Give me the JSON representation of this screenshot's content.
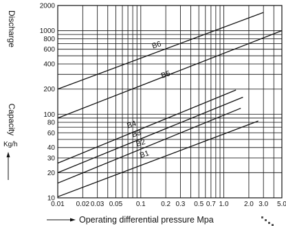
{
  "chart_data": {
    "type": "line",
    "y_label_main": "Discharge",
    "y_label_secondary": "Capacity",
    "y_unit": "Kg/h",
    "x_label": "Operating differential pressure Mpa",
    "x_scale": "log",
    "y_scale": "log",
    "xlim": [
      0.01,
      5.0
    ],
    "ylim": [
      10,
      2000
    ],
    "grid": true,
    "x_ticks": [
      {
        "v": 0.01,
        "label": "0.01"
      },
      {
        "v": 0.02,
        "label": "0.02"
      },
      {
        "v": 0.03,
        "label": "0.03"
      },
      {
        "v": 0.05,
        "label": "0.05"
      },
      {
        "v": 0.1,
        "label": "0.1"
      },
      {
        "v": 0.2,
        "label": "0.2"
      },
      {
        "v": 0.3,
        "label": "0.3"
      },
      {
        "v": 0.5,
        "label": "0.5"
      },
      {
        "v": 0.7,
        "label": "0.7"
      },
      {
        "v": 1.0,
        "label": "1.0"
      },
      {
        "v": 2.0,
        "label": "2.0"
      },
      {
        "v": 3.0,
        "label": "3.0"
      },
      {
        "v": 5.0,
        "label": "5.0"
      }
    ],
    "x_grid": [
      0.01,
      0.02,
      0.03,
      0.04,
      0.05,
      0.06,
      0.07,
      0.08,
      0.09,
      0.1,
      0.2,
      0.3,
      0.4,
      0.5,
      0.6,
      0.7,
      0.8,
      0.9,
      1,
      2,
      3,
      4,
      5
    ],
    "y_ticks": [
      {
        "v": 10,
        "label": "10"
      },
      {
        "v": 20,
        "label": "20"
      },
      {
        "v": 30,
        "label": "30"
      },
      {
        "v": 40,
        "label": "40"
      },
      {
        "v": 60,
        "label": "60"
      },
      {
        "v": 80,
        "label": "80"
      },
      {
        "v": 100,
        "label": "100"
      },
      {
        "v": 200,
        "label": "200"
      },
      {
        "v": 400,
        "label": "400"
      },
      {
        "v": 600,
        "label": "600"
      },
      {
        "v": 800,
        "label": "800"
      },
      {
        "v": 1000,
        "label": "1000"
      },
      {
        "v": 2000,
        "label": "2000"
      }
    ],
    "y_grid": [
      10,
      20,
      30,
      40,
      50,
      60,
      70,
      80,
      90,
      100,
      200,
      300,
      400,
      500,
      600,
      700,
      800,
      900,
      1000,
      2000
    ],
    "series": [
      {
        "name": "B1",
        "x": [
          0.01,
          2.6
        ],
        "y": [
          10.3,
          83
        ]
      },
      {
        "name": "B2",
        "x": [
          0.01,
          1.6
        ],
        "y": [
          15,
          118
        ]
      },
      {
        "name": "B3",
        "x": [
          0.01,
          1.7
        ],
        "y": [
          20,
          160
        ]
      },
      {
        "name": "B4",
        "x": [
          0.01,
          1.4
        ],
        "y": [
          26,
          195
        ]
      },
      {
        "name": "B5",
        "x": [
          0.01,
          5.0
        ],
        "y": [
          90,
          1000
        ]
      },
      {
        "name": "B6",
        "x": [
          0.01,
          3.0
        ],
        "y": [
          200,
          1650
        ]
      }
    ],
    "series_labels": [
      {
        "name": "B1",
        "x": 0.1,
        "y": 30
      },
      {
        "name": "B2",
        "x": 0.09,
        "y": 41
      },
      {
        "name": "B3",
        "x": 0.08,
        "y": 53
      },
      {
        "name": "B4",
        "x": 0.07,
        "y": 68
      },
      {
        "name": "B5",
        "x": 0.18,
        "y": 270
      },
      {
        "name": "B6",
        "x": 0.14,
        "y": 610
      }
    ]
  }
}
